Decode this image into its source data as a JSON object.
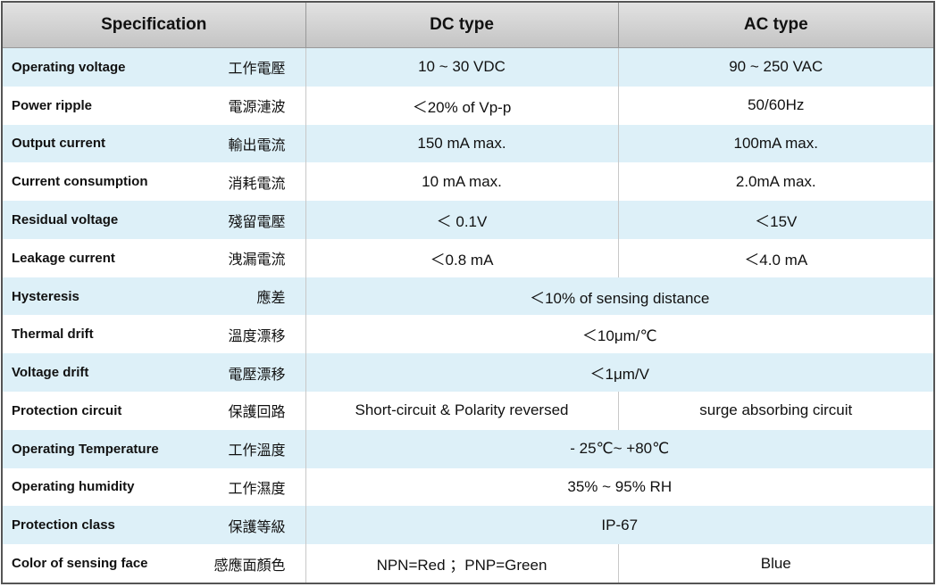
{
  "header": [
    "Specification",
    "DC type",
    "AC type"
  ],
  "rows": [
    {
      "en": "Operating voltage",
      "zh": "工作電壓",
      "cells": [
        "10 ~ 30 VDC",
        "90 ~ 250 VAC"
      ]
    },
    {
      "en": "Power ripple",
      "zh": "電源漣波",
      "cells": [
        "＜20% of Vp-p",
        "50/60Hz"
      ]
    },
    {
      "en": "Output current",
      "zh": "輸出電流",
      "cells": [
        "150 mA max.",
        "100mA max."
      ]
    },
    {
      "en": "Current consumption",
      "zh": "消耗電流",
      "cells": [
        "10 mA max.",
        "2.0mA max."
      ]
    },
    {
      "en": "Residual voltage",
      "zh": "殘留電壓",
      "cells": [
        "＜ 0.1V",
        "＜15V"
      ]
    },
    {
      "en": "Leakage current",
      "zh": "洩漏電流",
      "cells": [
        "＜0.8 mA",
        "＜4.0 mA"
      ]
    },
    {
      "en": "Hysteresis",
      "zh": "應差",
      "cells": [
        "＜10% of sensing distance"
      ]
    },
    {
      "en": "Thermal drift",
      "zh": "溫度漂移",
      "cells": [
        "＜10μm/℃"
      ]
    },
    {
      "en": "Voltage drift",
      "zh": "電壓漂移",
      "cells": [
        "＜1μm/V"
      ]
    },
    {
      "en": "Protection circuit",
      "zh": "保護回路",
      "cells": [
        "Short-circuit & Polarity reversed",
        "surge absorbing circuit"
      ]
    },
    {
      "en": "Operating Temperature",
      "zh": "工作溫度",
      "cells": [
        "- 25℃~ +80℃"
      ]
    },
    {
      "en": "Operating humidity",
      "zh": "工作濕度",
      "cells": [
        "35% ~ 95% RH"
      ]
    },
    {
      "en": "Protection class",
      "zh": "保護等級",
      "cells": [
        "IP-67"
      ]
    },
    {
      "en": "Color of sensing face",
      "zh": "感應面顏色",
      "cells": [
        "NPN=Red ；PNP=Green",
        "Blue"
      ]
    }
  ]
}
